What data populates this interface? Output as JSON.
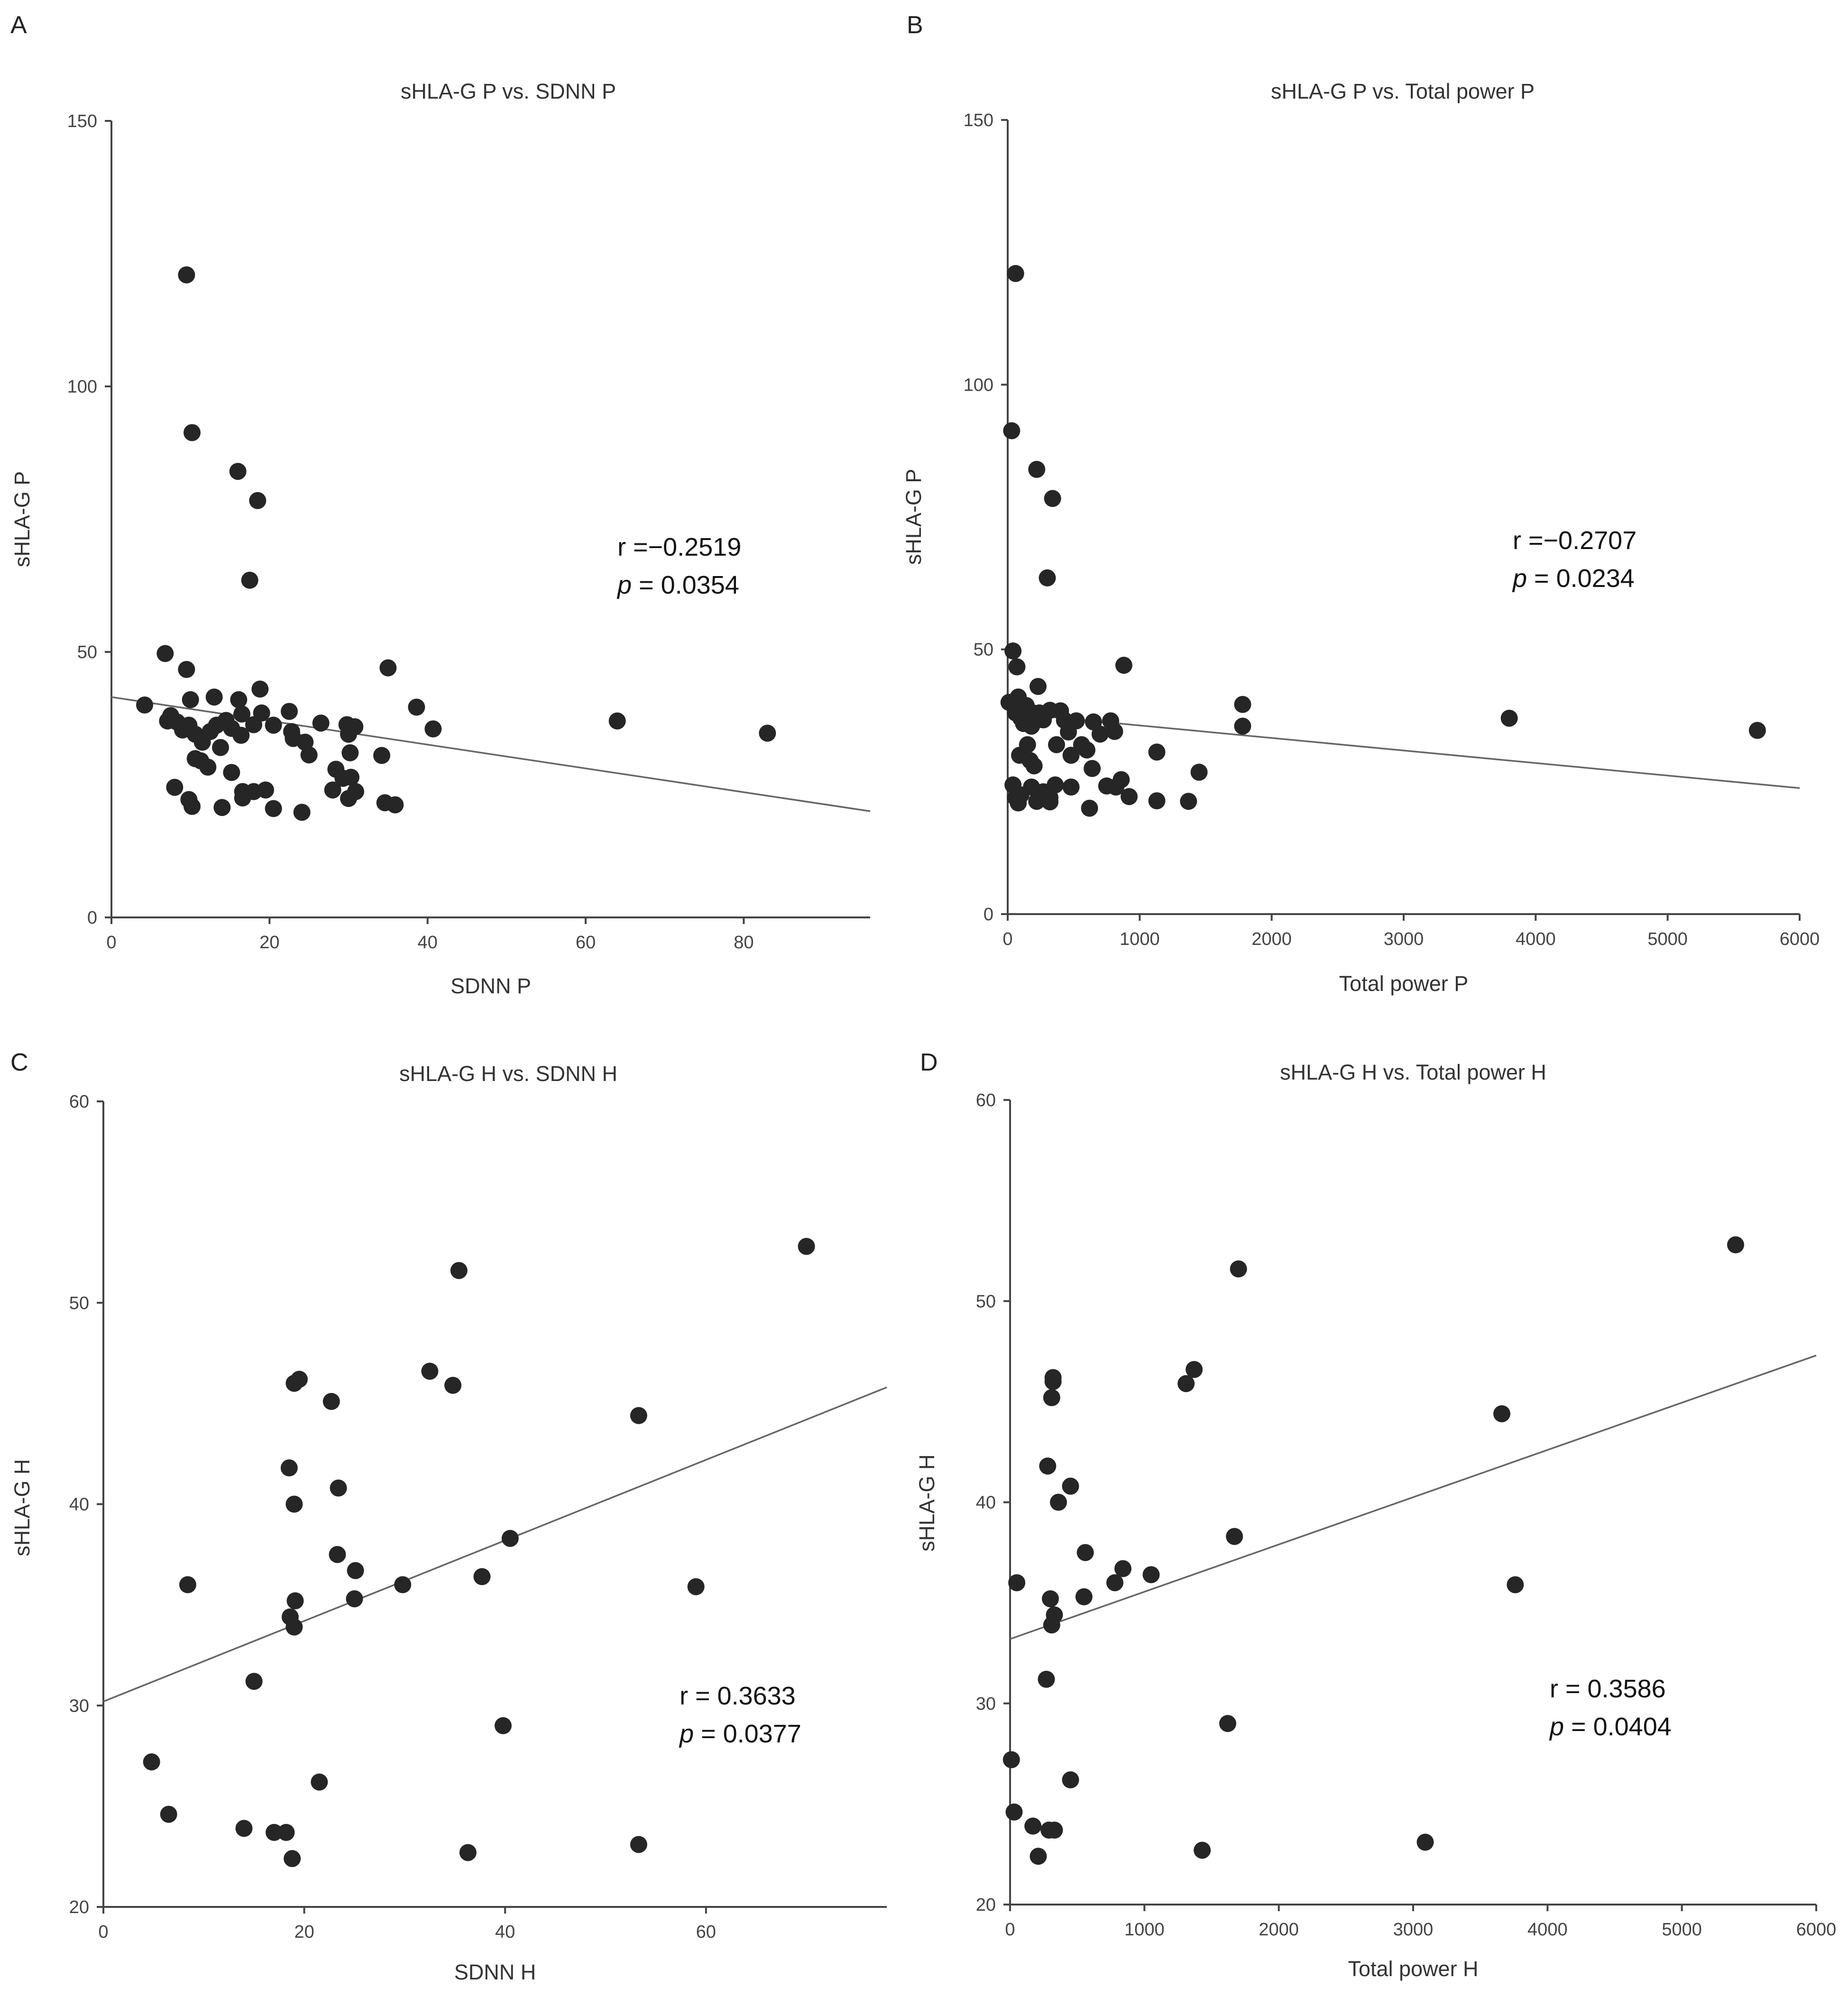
{
  "colors": {
    "point": "#262626",
    "line": "#666666",
    "axis": "#444444",
    "text": "#333333"
  },
  "chart_data": [
    {
      "panel": "A",
      "type": "scatter",
      "title": "sHLA-G P vs. SDNN P",
      "xlabel": "SDNN P",
      "ylabel": "sHLA-G P",
      "xlim": [
        0,
        96
      ],
      "ylim": [
        0,
        150
      ],
      "xticks": [
        0,
        20,
        40,
        60,
        80
      ],
      "yticks": [
        0,
        50,
        100,
        150
      ],
      "stat_r": "r =−0.2519",
      "stat_p_label": "p",
      "stat_p_value": " = 0.0354",
      "trendline": {
        "x": [
          0,
          96
        ],
        "y": [
          41.5,
          20
        ]
      },
      "points": [
        [
          9.5,
          121
        ],
        [
          10.2,
          91.3
        ],
        [
          16,
          84
        ],
        [
          18.5,
          78.5
        ],
        [
          17.5,
          63.5
        ],
        [
          6.8,
          49.7
        ],
        [
          9.5,
          46.7
        ],
        [
          18.8,
          43
        ],
        [
          35,
          47
        ],
        [
          38.6,
          39.6
        ],
        [
          40.7,
          35.5
        ],
        [
          64,
          37
        ],
        [
          83,
          34.7
        ],
        [
          4.2,
          40
        ],
        [
          10,
          41
        ],
        [
          13,
          41.5
        ],
        [
          16.1,
          41
        ],
        [
          7.1,
          37
        ],
        [
          7.5,
          38
        ],
        [
          8.3,
          36.8
        ],
        [
          9,
          35.3
        ],
        [
          9.8,
          36.2
        ],
        [
          10.6,
          34.5
        ],
        [
          11.5,
          33
        ],
        [
          12.5,
          35
        ],
        [
          13.3,
          36.2
        ],
        [
          14.5,
          37.1
        ],
        [
          15.2,
          35.6
        ],
        [
          16.4,
          34.3
        ],
        [
          16.5,
          38.3
        ],
        [
          18,
          36.3
        ],
        [
          19,
          38.5
        ],
        [
          20.5,
          36.2
        ],
        [
          22.5,
          38.8
        ],
        [
          22.8,
          35
        ],
        [
          23,
          33.7
        ],
        [
          24.5,
          33
        ],
        [
          25,
          30.6
        ],
        [
          26.5,
          36.6
        ],
        [
          28.4,
          27.9
        ],
        [
          29.3,
          26.2
        ],
        [
          29.8,
          36.3
        ],
        [
          30,
          34.5
        ],
        [
          30.2,
          31
        ],
        [
          30.8,
          35.9
        ],
        [
          30.3,
          26.4
        ],
        [
          30.9,
          23.7
        ],
        [
          34.2,
          30.5
        ],
        [
          8,
          24.5
        ],
        [
          9.8,
          22.2
        ],
        [
          10.2,
          20.9
        ],
        [
          10.6,
          29.9
        ],
        [
          11.3,
          29.5
        ],
        [
          12.2,
          28.3
        ],
        [
          13.8,
          32
        ],
        [
          14,
          20.7
        ],
        [
          15.2,
          27.3
        ],
        [
          16.6,
          23.7
        ],
        [
          16.6,
          22.5
        ],
        [
          18,
          23.7
        ],
        [
          19.5,
          24
        ],
        [
          20.5,
          20.5
        ],
        [
          24.1,
          19.8
        ],
        [
          28,
          24
        ],
        [
          30,
          22.4
        ],
        [
          34.6,
          21.6
        ],
        [
          35.9,
          21.2
        ]
      ]
    },
    {
      "panel": "B",
      "type": "scatter",
      "title": "sHLA-G P vs. Total power P",
      "xlabel": "Total power P",
      "ylabel": "sHLA-G P",
      "xlim": [
        0,
        6000
      ],
      "ylim": [
        0,
        150
      ],
      "xticks": [
        0,
        1000,
        2000,
        3000,
        4000,
        5000,
        6000
      ],
      "yticks": [
        0,
        50,
        100,
        150
      ],
      "stat_r": "r =−0.2707",
      "stat_p_label": "p",
      "stat_p_value": " = 0.0234",
      "trendline": {
        "x": [
          0,
          6000
        ],
        "y": [
          38,
          23.8
        ]
      },
      "points": [
        [
          60,
          121
        ],
        [
          30,
          91.3
        ],
        [
          220,
          84
        ],
        [
          340,
          78.5
        ],
        [
          300,
          63.5
        ],
        [
          40,
          49.7
        ],
        [
          70,
          46.7
        ],
        [
          230,
          43
        ],
        [
          880,
          47
        ],
        [
          1780,
          39.6
        ],
        [
          1780,
          35.5
        ],
        [
          3800,
          37
        ],
        [
          5680,
          34.7
        ],
        [
          10,
          40
        ],
        [
          80,
          41
        ],
        [
          140,
          39.4
        ],
        [
          190,
          38
        ],
        [
          60,
          38
        ],
        [
          100,
          37
        ],
        [
          120,
          36
        ],
        [
          150,
          37.3
        ],
        [
          180,
          35.5
        ],
        [
          210,
          36.5
        ],
        [
          240,
          38
        ],
        [
          270,
          36.7
        ],
        [
          320,
          38.5
        ],
        [
          400,
          38.4
        ],
        [
          430,
          36.6
        ],
        [
          460,
          34.4
        ],
        [
          520,
          36.5
        ],
        [
          560,
          32
        ],
        [
          600,
          31
        ],
        [
          650,
          36.3
        ],
        [
          700,
          34
        ],
        [
          780,
          36.5
        ],
        [
          810,
          34.5
        ],
        [
          90,
          30
        ],
        [
          150,
          32
        ],
        [
          170,
          29
        ],
        [
          200,
          28
        ],
        [
          370,
          32
        ],
        [
          480,
          30
        ],
        [
          640,
          27.5
        ],
        [
          860,
          25.4
        ],
        [
          1130,
          30.6
        ],
        [
          1450,
          26.8
        ],
        [
          40,
          24.4
        ],
        [
          60,
          22
        ],
        [
          80,
          21
        ],
        [
          180,
          24
        ],
        [
          270,
          23.1
        ],
        [
          320,
          22
        ],
        [
          320,
          21.2
        ],
        [
          480,
          24
        ],
        [
          620,
          20
        ],
        [
          750,
          24.2
        ],
        [
          820,
          24
        ],
        [
          920,
          22.2
        ],
        [
          1130,
          21.4
        ],
        [
          1370,
          21.3
        ],
        [
          220,
          21.3
        ],
        [
          360,
          24.4
        ],
        [
          100,
          22.5
        ]
      ]
    },
    {
      "panel": "C",
      "type": "scatter",
      "title": "sHLA-G H vs. SDNN H",
      "xlabel": "SDNN H",
      "ylabel": "sHLA-G H",
      "xlim": [
        0,
        78
      ],
      "ylim": [
        20,
        60
      ],
      "xticks": [
        0,
        20,
        40,
        60
      ],
      "yticks": [
        20,
        30,
        40,
        50,
        60
      ],
      "stat_r": "r = 0.3633",
      "stat_p_label": "p",
      "stat_p_value": " = 0.0377",
      "trendline": {
        "x": [
          0,
          78
        ],
        "y": [
          30.2,
          45.8
        ]
      },
      "points": [
        [
          70,
          52.8
        ],
        [
          35.4,
          51.6
        ],
        [
          32.5,
          46.6
        ],
        [
          34.8,
          45.9
        ],
        [
          19.5,
          46.2
        ],
        [
          19,
          46
        ],
        [
          22.7,
          45.1
        ],
        [
          53.3,
          44.4
        ],
        [
          18.5,
          41.8
        ],
        [
          23.4,
          40.8
        ],
        [
          19,
          40
        ],
        [
          40.5,
          38.3
        ],
        [
          23.3,
          37.5
        ],
        [
          25.1,
          36.7
        ],
        [
          37.7,
          36.4
        ],
        [
          8.4,
          36
        ],
        [
          29.8,
          36
        ],
        [
          59,
          35.9
        ],
        [
          19.1,
          35.2
        ],
        [
          25,
          35.3
        ],
        [
          18.6,
          34.4
        ],
        [
          19,
          33.9
        ],
        [
          15,
          31.2
        ],
        [
          39.8,
          29
        ],
        [
          4.8,
          27.2
        ],
        [
          21.5,
          26.2
        ],
        [
          6.5,
          24.6
        ],
        [
          14,
          23.9
        ],
        [
          17,
          23.7
        ],
        [
          18.2,
          23.7
        ],
        [
          53.3,
          23.1
        ],
        [
          36.3,
          22.7
        ],
        [
          18.8,
          22.4
        ]
      ]
    },
    {
      "panel": "D",
      "type": "scatter",
      "title": "sHLA-G H vs. Total power H",
      "xlabel": "Total power H",
      "ylabel": "sHLA-G H",
      "xlim": [
        0,
        6000
      ],
      "ylim": [
        20,
        60
      ],
      "xticks": [
        0,
        1000,
        2000,
        3000,
        4000,
        5000,
        6000
      ],
      "yticks": [
        20,
        30,
        40,
        50,
        60
      ],
      "stat_r": "r = 0.3586",
      "stat_p_label": "p",
      "stat_p_value": " = 0.0404",
      "trendline": {
        "x": [
          0,
          6000
        ],
        "y": [
          33.2,
          47.3
        ]
      },
      "points": [
        [
          5400,
          52.8
        ],
        [
          1700,
          51.6
        ],
        [
          1370,
          46.6
        ],
        [
          1310,
          45.9
        ],
        [
          320,
          46.2
        ],
        [
          320,
          46
        ],
        [
          310,
          45.2
        ],
        [
          3660,
          44.4
        ],
        [
          280,
          41.8
        ],
        [
          450,
          40.8
        ],
        [
          360,
          40
        ],
        [
          1670,
          38.3
        ],
        [
          560,
          37.5
        ],
        [
          840,
          36.7
        ],
        [
          1050,
          36.4
        ],
        [
          50,
          36
        ],
        [
          780,
          36
        ],
        [
          3760,
          35.9
        ],
        [
          300,
          35.2
        ],
        [
          550,
          35.3
        ],
        [
          330,
          34.4
        ],
        [
          310,
          33.9
        ],
        [
          270,
          31.2
        ],
        [
          1620,
          29
        ],
        [
          10,
          27.2
        ],
        [
          450,
          26.2
        ],
        [
          30,
          24.6
        ],
        [
          170,
          23.9
        ],
        [
          290,
          23.7
        ],
        [
          330,
          23.7
        ],
        [
          3090,
          23.1
        ],
        [
          1430,
          22.7
        ],
        [
          210,
          22.4
        ]
      ]
    }
  ]
}
